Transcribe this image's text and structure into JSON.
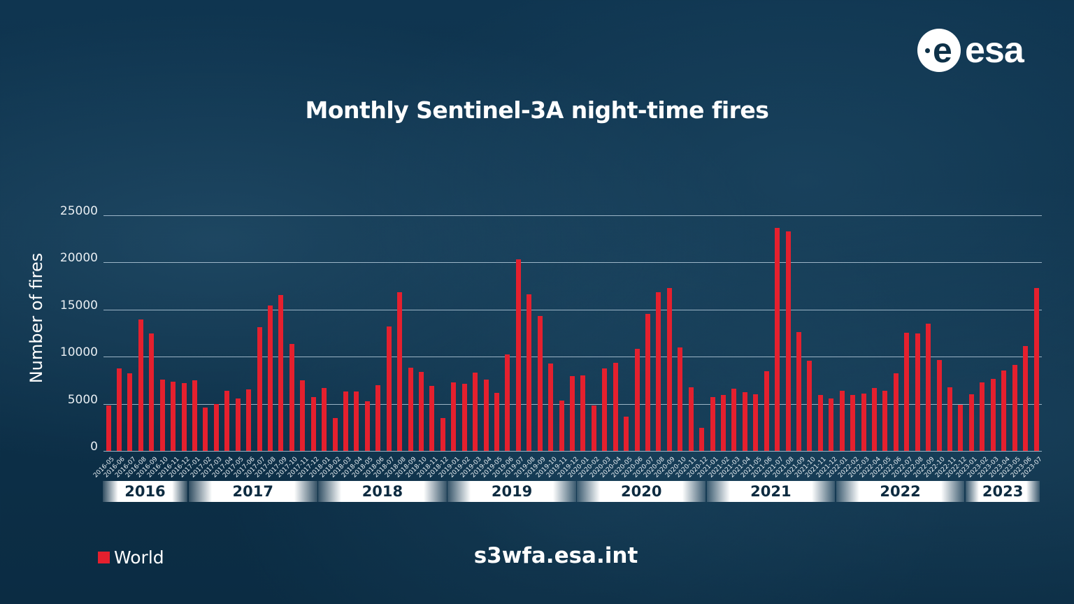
{
  "logo": {
    "text": "esa"
  },
  "footer": {
    "url": "s3wfa.esa.int"
  },
  "legend": {
    "label": "World",
    "color": "#e5202e"
  },
  "chart_data": {
    "type": "bar",
    "title": "Monthly Sentinel-3A night-time fires",
    "xlabel": "",
    "ylabel": "Number of fires",
    "ylim": [
      0,
      25000
    ],
    "yticks": [
      0,
      5000,
      10000,
      15000,
      20000,
      25000
    ],
    "grid": true,
    "legend_position": "bottom-left",
    "bar_color": "#e5202e",
    "year_groups": [
      {
        "label": "2016",
        "start": 0,
        "count": 8
      },
      {
        "label": "2017",
        "start": 8,
        "count": 12
      },
      {
        "label": "2018",
        "start": 20,
        "count": 12
      },
      {
        "label": "2019",
        "start": 32,
        "count": 12
      },
      {
        "label": "2020",
        "start": 44,
        "count": 12
      },
      {
        "label": "2021",
        "start": 56,
        "count": 12
      },
      {
        "label": "2022",
        "start": 68,
        "count": 12
      },
      {
        "label": "2023",
        "start": 80,
        "count": 7
      }
    ],
    "categories": [
      "2016-05",
      "2016-06",
      "2016-07",
      "2016-08",
      "2016-09",
      "2016-10",
      "2016-11",
      "2016-12",
      "2017-01",
      "2017-02",
      "2017-03",
      "2017-04",
      "2017-05",
      "2017-06",
      "2017-07",
      "2017-08",
      "2017-09",
      "2017-10",
      "2017-11",
      "2017-12",
      "2018-01",
      "2018-02",
      "2018-03",
      "2018-04",
      "2018-05",
      "2018-06",
      "2018-07",
      "2018-08",
      "2018-09",
      "2018-10",
      "2018-11",
      "2018-12",
      "2019-01",
      "2019-02",
      "2019-03",
      "2019-04",
      "2019-05",
      "2019-06",
      "2019-07",
      "2019-08",
      "2019-09",
      "2019-10",
      "2019-11",
      "2019-12",
      "2020-01",
      "2020-02",
      "2020-03",
      "2020-04",
      "2020-05",
      "2020-06",
      "2020-07",
      "2020-08",
      "2020-09",
      "2020-10",
      "2020-11",
      "2020-12",
      "2021-01",
      "2021-02",
      "2021-03",
      "2021-04",
      "2021-05",
      "2021-06",
      "2021-07",
      "2021-08",
      "2021-09",
      "2021-10",
      "2021-11",
      "2021-12",
      "2022-01",
      "2022-02",
      "2022-03",
      "2022-04",
      "2022-05",
      "2022-06",
      "2022-07",
      "2022-08",
      "2022-09",
      "2022-10",
      "2022-11",
      "2022-12",
      "2023-01",
      "2023-02",
      "2023-03",
      "2023-04",
      "2023-05",
      "2023-06",
      "2023-07"
    ],
    "series": [
      {
        "name": "World",
        "values": [
          4800,
          8750,
          8200,
          13950,
          12450,
          7550,
          7350,
          7200,
          7500,
          4600,
          4950,
          6400,
          5550,
          6500,
          13100,
          15450,
          16550,
          11350,
          7500,
          5700,
          6650,
          3500,
          6300,
          6300,
          5250,
          7000,
          13200,
          16850,
          8850,
          8400,
          6900,
          3500,
          7250,
          7100,
          8300,
          7550,
          6150,
          10250,
          20300,
          16600,
          14300,
          9250,
          5350,
          7950,
          8000,
          4850,
          8750,
          9350,
          3650,
          10850,
          14550,
          16850,
          17300,
          11000,
          6750,
          2450,
          5700,
          5900,
          6600,
          6200,
          6000,
          8450,
          23700,
          23300,
          12600,
          9600,
          5900,
          5550,
          6350,
          5900,
          6100,
          6650,
          6400,
          8250,
          12550,
          12450,
          13500,
          9650,
          6750,
          4900,
          6000,
          7250,
          7650,
          8550,
          9150,
          11150,
          17250
        ]
      }
    ]
  }
}
